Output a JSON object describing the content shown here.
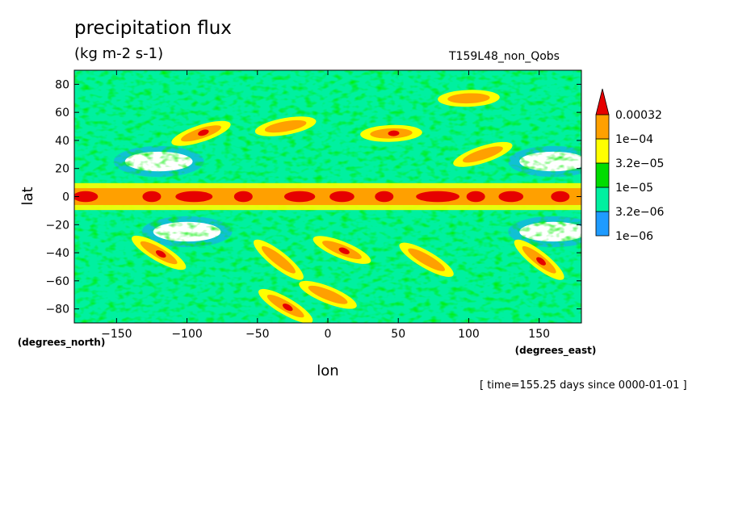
{
  "title": "precipitation flux",
  "units": "(kg m-2 s-1)",
  "run_name": "T159L48_non_Qobs",
  "time_note": "[ time=155.25 days since 0000-01-01 ]",
  "chart_data": {
    "type": "heatmap",
    "xlabel": "lon",
    "ylabel": "lat",
    "xunit": "(degrees_east)",
    "yunit": "(degrees_north)",
    "xlim": [
      -180,
      180
    ],
    "ylim": [
      -90,
      90
    ],
    "x_ticks": [
      -150,
      -100,
      -50,
      0,
      50,
      100,
      150
    ],
    "y_ticks": [
      -80,
      -60,
      -40,
      -20,
      0,
      20,
      40,
      60,
      80
    ],
    "colorbar": {
      "levels": [
        "1e-06",
        "3.2e-06",
        "1e-05",
        "3.2e-05",
        "1e-04",
        "0.00032"
      ],
      "level_values": [
        1e-06,
        3.2e-06,
        1e-05,
        3.2e-05,
        0.0001,
        0.00032
      ],
      "colors": [
        "#1e9bff",
        "#00f0a0",
        "#00dc00",
        "#ffff00",
        "#ffa000",
        "#e60000"
      ],
      "extend": "max"
    },
    "features": {
      "background_color": "#00f0a0",
      "itcz": {
        "lat": 0,
        "width_deg": 6,
        "core_color": "#e60000"
      },
      "dry_zones": [
        {
          "lon": -120,
          "lat": 25,
          "color": "#ffffff"
        },
        {
          "lon": -100,
          "lat": -25,
          "color": "#ffffff"
        },
        {
          "lon": 160,
          "lat": 25,
          "color": "#ffffff"
        },
        {
          "lon": 160,
          "lat": -25,
          "color": "#ffffff"
        }
      ],
      "storm_bands": [
        {
          "lon": -90,
          "lat": 45
        },
        {
          "lon": -30,
          "lat": 50
        },
        {
          "lon": 45,
          "lat": 45
        },
        {
          "lon": 110,
          "lat": 30
        },
        {
          "lon": -120,
          "lat": -40
        },
        {
          "lon": -35,
          "lat": -45
        },
        {
          "lon": 10,
          "lat": -38
        },
        {
          "lon": 70,
          "lat": -45
        },
        {
          "lon": 150,
          "lat": -45
        },
        {
          "lon": 0,
          "lat": -70
        },
        {
          "lon": -30,
          "lat": -78
        },
        {
          "lon": 100,
          "lat": 70
        }
      ]
    }
  }
}
